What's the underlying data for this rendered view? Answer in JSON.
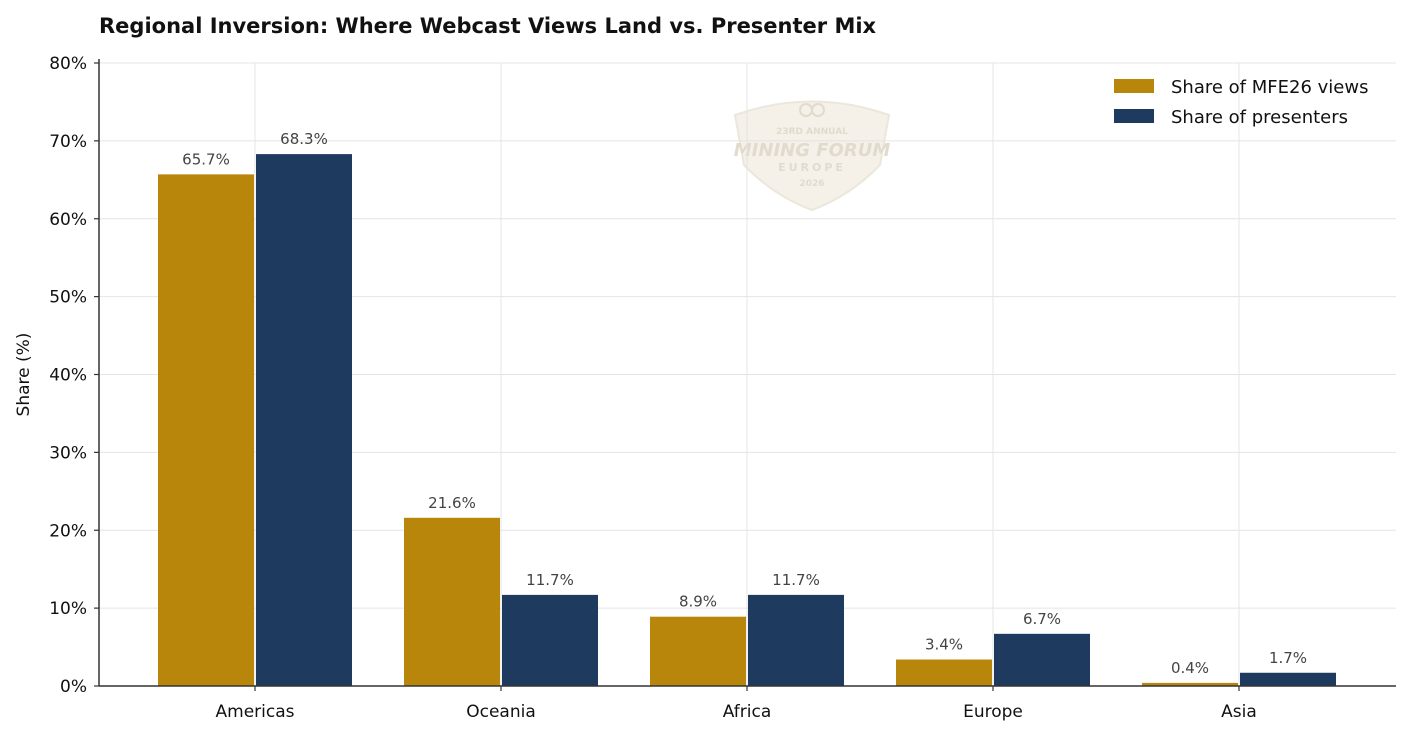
{
  "chart_data": {
    "type": "bar",
    "title": "Regional Inversion: Where Webcast Views Land vs. Presenter Mix",
    "xlabel": "",
    "ylabel": "Share (%)",
    "ylim": [
      0,
      80
    ],
    "yticks": [
      0,
      10,
      20,
      30,
      40,
      50,
      60,
      70,
      80
    ],
    "ytick_labels": [
      "0%",
      "10%",
      "20%",
      "30%",
      "40%",
      "50%",
      "60%",
      "70%",
      "80%"
    ],
    "categories": [
      "Americas",
      "Oceania",
      "Africa",
      "Europe",
      "Asia"
    ],
    "series": [
      {
        "name": "Share of MFE26 views",
        "values": [
          65.7,
          21.6,
          8.9,
          3.4,
          0.4
        ],
        "labels": [
          "65.7%",
          "21.6%",
          "8.9%",
          "3.4%",
          "0.4%"
        ],
        "color": "#b8860b"
      },
      {
        "name": "Share of presenters",
        "values": [
          68.3,
          11.7,
          11.7,
          6.7,
          1.7
        ],
        "labels": [
          "68.3%",
          "11.7%",
          "11.7%",
          "6.7%",
          "1.7%"
        ],
        "color": "#1f3a5f"
      }
    ],
    "grid": true,
    "legend_position": "top-right"
  },
  "watermark": {
    "line1": "23RD ANNUAL",
    "line2": "MINING FORUM",
    "line3": "EUROPE",
    "line4": "2026"
  }
}
